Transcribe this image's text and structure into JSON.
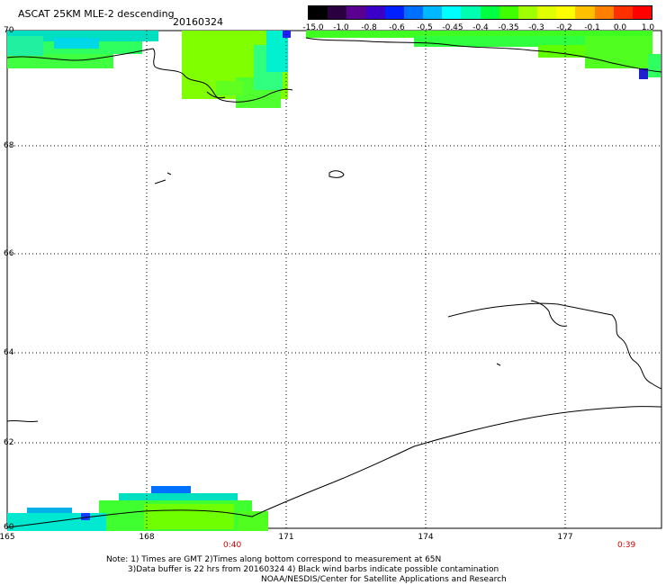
{
  "header": {
    "title": "ASCAT 25KM MLE-2 descending",
    "date": "20160324"
  },
  "colorbar": {
    "labels": [
      "-15.0",
      "-1.0",
      "-0.8",
      "-0.6",
      "-0.5",
      "-0.45",
      "-0.4",
      "-0.35",
      "-0.3",
      "-0.2",
      "-0.1",
      "0.0",
      "1.0"
    ],
    "colors": [
      "#000000",
      "#2a0040",
      "#5a0090",
      "#3a00c8",
      "#0020ff",
      "#0070ff",
      "#00b8ff",
      "#00ffff",
      "#00ffb0",
      "#00ff40",
      "#40ff00",
      "#a0ff00",
      "#e0ff00",
      "#ffff00",
      "#ffc000",
      "#ff8000",
      "#ff3000",
      "#ff0000"
    ]
  },
  "map": {
    "lat_labels": [
      "70",
      "68",
      "66",
      "64",
      "62",
      "60"
    ],
    "lon_labels": [
      "165",
      "168",
      "171",
      "174",
      "177"
    ],
    "times": [
      "0:40",
      "0:39"
    ]
  },
  "footer": {
    "line1": "Note: 1) Times are GMT 2)Times along bottom correspond to measurement at 65N",
    "line2": "3)Data buffer is 22 hrs from 20160324 4) Black wind barbs indicate possible contamination",
    "line3": "NOAA/NESDIS/Center for Satellite Applications and Research"
  }
}
